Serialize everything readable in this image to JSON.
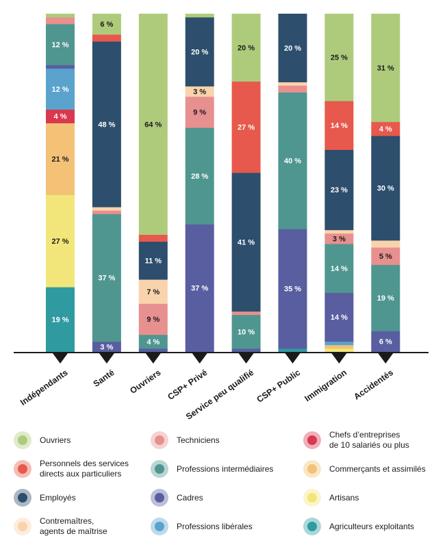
{
  "chart_data": {
    "type": "bar",
    "stacked": true,
    "normalized_percent": true,
    "categories": [
      "Indépendants",
      "Santé",
      "Ouvriers",
      "CSP+ Privé",
      "Service peu qualifié",
      "CSP+ Public",
      "Immigration",
      "Accidentés"
    ],
    "series": [
      {
        "name": "Agriculteurs exploitants",
        "color": "#2f9aa0",
        "values": [
          19,
          0,
          0,
          0,
          0,
          1,
          0,
          0
        ]
      },
      {
        "name": "Artisans",
        "color": "#f2e67a",
        "values": [
          27,
          0,
          0,
          0,
          0,
          0,
          1,
          0
        ]
      },
      {
        "name": "Commerçants et assimilés",
        "color": "#f3c276",
        "values": [
          21,
          0,
          0,
          0,
          0,
          0,
          1,
          0
        ]
      },
      {
        "name": "Chefs d’entreprises de 10 salariés ou plus",
        "color": "#d9384f",
        "values": [
          4,
          0,
          0,
          0,
          0,
          0,
          0,
          0
        ]
      },
      {
        "name": "Professions libérales",
        "color": "#5aa3cc",
        "values": [
          12,
          0,
          0,
          0,
          0,
          0,
          1,
          0
        ]
      },
      {
        "name": "Cadres",
        "color": "#585ea0",
        "values": [
          1,
          3,
          1,
          37,
          1,
          35,
          14,
          6
        ]
      },
      {
        "name": "Professions intermédiaires",
        "color": "#4f9690",
        "values": [
          12,
          37,
          4,
          28,
          10,
          40,
          14,
          19
        ]
      },
      {
        "name": "Techniciens",
        "color": "#e7908f",
        "values": [
          2,
          1,
          9,
          9,
          1,
          2,
          3,
          5
        ]
      },
      {
        "name": "Contremaîtres, agents de maîtrise",
        "color": "#f8d3ac",
        "values": [
          0,
          1,
          7,
          3,
          0,
          1,
          1,
          2
        ]
      },
      {
        "name": "Employés",
        "color": "#2d4e6c",
        "values": [
          0,
          48,
          11,
          20,
          41,
          20,
          23,
          30
        ]
      },
      {
        "name": "Personnels des services directs aux particuliers",
        "color": "#e7594c",
        "values": [
          0,
          2,
          2,
          0,
          27,
          0,
          14,
          4
        ]
      },
      {
        "name": "Ouvriers",
        "color": "#aecb7c",
        "values": [
          1,
          6,
          64,
          1,
          20,
          0,
          25,
          31
        ]
      }
    ],
    "labels": [
      {
        "cat": 0,
        "series": "Agriculteurs exploitants",
        "text": "19 %"
      },
      {
        "cat": 0,
        "series": "Artisans",
        "text": "27 %"
      },
      {
        "cat": 0,
        "series": "Commerçants et assimilés",
        "text": "21 %"
      },
      {
        "cat": 0,
        "series": "Chefs d’entreprises de 10 salariés ou plus",
        "text": "4 %"
      },
      {
        "cat": 0,
        "series": "Professions libérales",
        "text": "12 %"
      },
      {
        "cat": 0,
        "series": "Professions intermédiaires",
        "text": "12 %"
      },
      {
        "cat": 1,
        "series": "Cadres",
        "text": "3 %"
      },
      {
        "cat": 1,
        "series": "Professions intermédiaires",
        "text": "37 %"
      },
      {
        "cat": 1,
        "series": "Employés",
        "text": "48 %"
      },
      {
        "cat": 1,
        "series": "Ouvriers",
        "text": "6 %"
      },
      {
        "cat": 2,
        "series": "Professions intermédiaires",
        "text": "4 %"
      },
      {
        "cat": 2,
        "series": "Techniciens",
        "text": "9 %"
      },
      {
        "cat": 2,
        "series": "Contremaîtres, agents de maîtrise",
        "text": "7 %"
      },
      {
        "cat": 2,
        "series": "Employés",
        "text": "11 %"
      },
      {
        "cat": 2,
        "series": "Ouvriers",
        "text": "64 %"
      },
      {
        "cat": 3,
        "series": "Cadres",
        "text": "37 %"
      },
      {
        "cat": 3,
        "series": "Professions intermédiaires",
        "text": "28 %"
      },
      {
        "cat": 3,
        "series": "Techniciens",
        "text": "9 %"
      },
      {
        "cat": 3,
        "series": "Contremaîtres, agents de maîtrise",
        "text": "3 %"
      },
      {
        "cat": 3,
        "series": "Employés",
        "text": "20 %"
      },
      {
        "cat": 4,
        "series": "Professions intermédiaires",
        "text": "10 %"
      },
      {
        "cat": 4,
        "series": "Employés",
        "text": "41 %"
      },
      {
        "cat": 4,
        "series": "Personnels des services directs aux particuliers",
        "text": "27 %"
      },
      {
        "cat": 4,
        "series": "Ouvriers",
        "text": "20 %"
      },
      {
        "cat": 5,
        "series": "Cadres",
        "text": "35 %"
      },
      {
        "cat": 5,
        "series": "Professions intermédiaires",
        "text": "40 %"
      },
      {
        "cat": 5,
        "series": "Employés",
        "text": "20 %"
      },
      {
        "cat": 6,
        "series": "Cadres",
        "text": "14 %"
      },
      {
        "cat": 6,
        "series": "Professions intermédiaires",
        "text": "14 %"
      },
      {
        "cat": 6,
        "series": "Techniciens",
        "text": "3 %"
      },
      {
        "cat": 6,
        "series": "Employés",
        "text": "23 %"
      },
      {
        "cat": 6,
        "series": "Personnels des services directs aux particuliers",
        "text": "14 %"
      },
      {
        "cat": 6,
        "series": "Ouvriers",
        "text": "25 %"
      },
      {
        "cat": 7,
        "series": "Cadres",
        "text": "6 %"
      },
      {
        "cat": 7,
        "series": "Professions intermédiaires",
        "text": "19 %"
      },
      {
        "cat": 7,
        "series": "Techniciens",
        "text": "5 %"
      },
      {
        "cat": 7,
        "series": "Employés",
        "text": "30 %"
      },
      {
        "cat": 7,
        "series": "Personnels des services directs aux particuliers",
        "text": "4 %"
      },
      {
        "cat": 7,
        "series": "Ouvriers",
        "text": "31 %"
      }
    ],
    "dark_label_series": [
      "Artisans",
      "Commerçants et assimilés",
      "Contremaîtres, agents de maîtrise",
      "Ouvriers",
      "Techniciens"
    ],
    "legend": {
      "position": "bottom",
      "items": [
        {
          "label": "Ouvriers",
          "color": "#aecb7c"
        },
        {
          "label": "Techniciens",
          "color": "#e7908f"
        },
        {
          "label": "Chefs d’entreprises\nde 10  salariés ou plus",
          "color": "#d9384f"
        },
        {
          "label": "Personnels des services\ndirects aux particuliers",
          "color": "#e7594c"
        },
        {
          "label": "Professions intermédiaires",
          "color": "#4f9690"
        },
        {
          "label": "Commerçants et assimilés",
          "color": "#f3c276"
        },
        {
          "label": "Employés",
          "color": "#2d4e6c"
        },
        {
          "label": "Cadres",
          "color": "#585ea0"
        },
        {
          "label": "Artisans",
          "color": "#f2e67a"
        },
        {
          "label": "Contremaîtres,\nagents de maîtrise",
          "color": "#f8d3ac"
        },
        {
          "label": "Professions libérales",
          "color": "#5aa3cc"
        },
        {
          "label": "Agriculteurs exploitants",
          "color": "#2f9aa0"
        }
      ]
    }
  }
}
